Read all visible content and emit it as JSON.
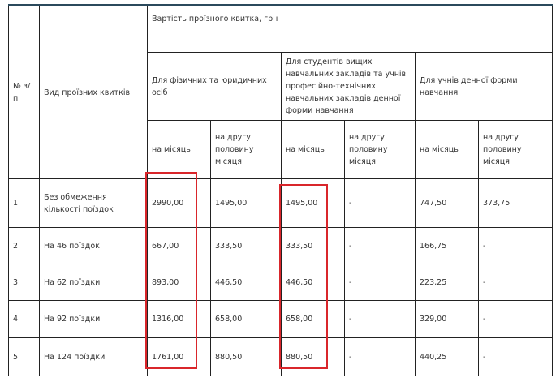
{
  "header": {
    "num": "№ з/п",
    "type": "Вид проїзних квитків",
    "cost": "Вартість проїзного квитка, грн",
    "groups": [
      "Для фізичних та юридичних осіб",
      "Для студентів вищих навчальних закладів  та учнів професійно-технічних навчальних закладів денної форми навчання",
      "Для учнів денної форми навчання"
    ],
    "month": "на місяць",
    "half": "на другу половину місяця"
  },
  "rows": [
    [
      "1",
      "Без обмеження кількості поїздок",
      "2990,00",
      "1495,00",
      "1495,00",
      "-",
      "747,50",
      "373,75"
    ],
    [
      "2",
      "На 46 поїздок",
      "667,00",
      "333,50",
      "333,50",
      "-",
      "166,75",
      "-"
    ],
    [
      "3",
      "На 62 поїздки",
      "893,00",
      "446,50",
      "446,50",
      "-",
      "223,25",
      "-"
    ],
    [
      "4",
      "На 92 поїздки",
      "1316,00",
      "658,00",
      "658,00",
      "-",
      "329,00",
      "-"
    ],
    [
      "5",
      "На 124 поїздки",
      "1761,00",
      "880,50",
      "880,50",
      "-",
      "440,25",
      "-"
    ]
  ],
  "highlight_color": "#d9262b"
}
